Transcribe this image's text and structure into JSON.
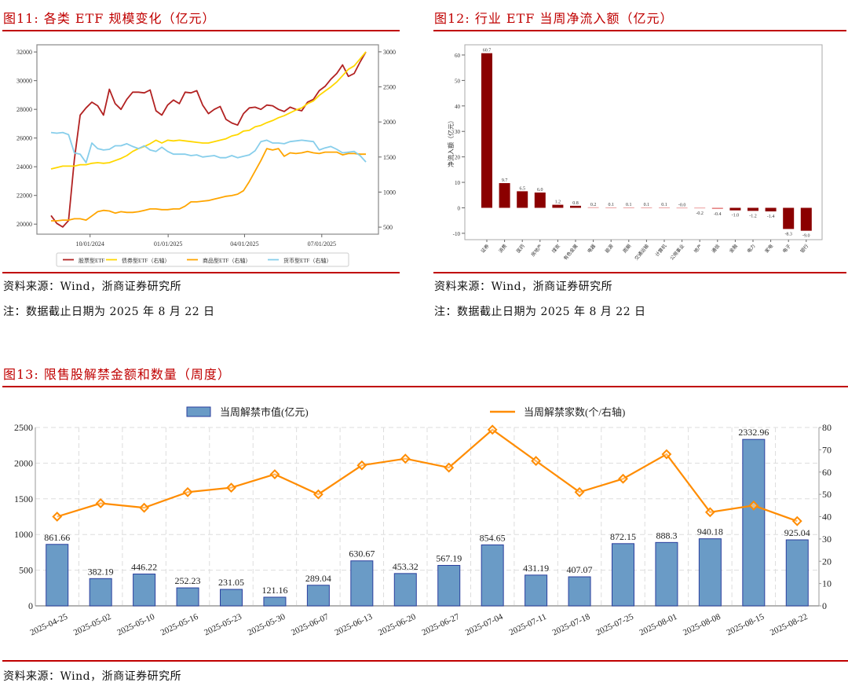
{
  "figures": {
    "fig11": {
      "title": "图11:  各类 ETF 规模变化（亿元）",
      "source": "资料来源：Wind，浙商证券研究所",
      "note": "注：数据截止日期为 2025 年 8 月 22 日"
    },
    "fig12": {
      "title": "图12:  行业 ETF 当周净流入额（亿元）",
      "source": "资料来源：Wind，浙商证券研究所",
      "note": "注：数据截止日期为 2025 年 8 月 22 日"
    },
    "fig13": {
      "title": "图13:  限售股解禁金额和数量（周度）",
      "source": "资料来源：Wind，浙商证券研究所"
    }
  },
  "colors": {
    "title_red": "#c00000",
    "equity_etf": "#b22222",
    "bond_etf": "#ffd700",
    "commodity_etf": "#ffa500",
    "money_etf": "#87ceeb",
    "bar_darkred": "#8b0000",
    "bar_blue": "#6a9bc6",
    "bar_blue_edge": "#2b3f9e",
    "line_orange": "#ff8c00"
  },
  "chart_data": [
    {
      "id": "fig11",
      "type": "line",
      "title": "各类 ETF 规模变化（亿元）",
      "xlabel": "",
      "ylabel": "",
      "x_ticks": [
        "10/01/2024",
        "01/01/2025",
        "04/01/2025",
        "07/01/2025"
      ],
      "x_range": [
        "2024-08-16",
        "2025-08-22"
      ],
      "ylim_left": [
        19300,
        32500
      ],
      "y_ticks_left": [
        20000,
        22000,
        24000,
        26000,
        28000,
        30000,
        32000
      ],
      "ylim_right": [
        400,
        3100
      ],
      "y_ticks_right": [
        500,
        1000,
        1500,
        2000,
        2500,
        3000
      ],
      "grid": false,
      "legend": "bottom",
      "series": [
        {
          "name": "股票型ETF",
          "axis": "left",
          "color": "#b22222",
          "values": [
            20600,
            20050,
            19800,
            20250,
            24500,
            27600,
            28100,
            28500,
            28250,
            27600,
            29400,
            28400,
            28000,
            28700,
            29200,
            29200,
            29150,
            29350,
            27900,
            27600,
            28300,
            28650,
            28400,
            29200,
            29150,
            29300,
            28300,
            27700,
            28000,
            28200,
            27300,
            27050,
            26900,
            27700,
            28100,
            28150,
            28000,
            28300,
            28250,
            28000,
            27850,
            28150,
            28000,
            27900,
            28500,
            28700,
            29300,
            29600,
            30100,
            30500,
            31100,
            30300,
            30500,
            31300,
            32000
          ]
        },
        {
          "name": "债券型ETF（右轴）",
          "axis": "right",
          "color": "#ffd700",
          "values": [
            1330,
            1350,
            1370,
            1370,
            1370,
            1390,
            1390,
            1410,
            1420,
            1410,
            1420,
            1450,
            1480,
            1520,
            1580,
            1620,
            1650,
            1690,
            1740,
            1700,
            1740,
            1730,
            1740,
            1730,
            1720,
            1710,
            1700,
            1700,
            1720,
            1740,
            1760,
            1800,
            1820,
            1870,
            1880,
            1930,
            1950,
            1990,
            2020,
            2060,
            2090,
            2130,
            2170,
            2200,
            2260,
            2300,
            2380,
            2440,
            2500,
            2570,
            2660,
            2750,
            2800,
            2900,
            3000
          ]
        },
        {
          "name": "商品型ETF（右轴）",
          "axis": "right",
          "color": "#ffa500",
          "values": [
            590,
            590,
            600,
            600,
            620,
            620,
            600,
            660,
            720,
            740,
            730,
            700,
            720,
            710,
            710,
            720,
            740,
            760,
            760,
            750,
            750,
            760,
            760,
            800,
            860,
            860,
            870,
            880,
            900,
            920,
            940,
            950,
            970,
            1020,
            1150,
            1300,
            1450,
            1620,
            1600,
            1620,
            1510,
            1560,
            1550,
            1560,
            1580,
            1560,
            1550,
            1570,
            1570,
            1570,
            1530,
            1550,
            1550,
            1540,
            1540
          ]
        },
        {
          "name": "货币型ETF（右轴）",
          "axis": "right",
          "color": "#87ceeb",
          "values": [
            1850,
            1840,
            1850,
            1820,
            1560,
            1540,
            1420,
            1700,
            1620,
            1600,
            1610,
            1660,
            1660,
            1690,
            1650,
            1620,
            1660,
            1600,
            1580,
            1640,
            1580,
            1540,
            1540,
            1540,
            1520,
            1530,
            1500,
            1510,
            1520,
            1490,
            1490,
            1520,
            1490,
            1510,
            1530,
            1590,
            1720,
            1740,
            1700,
            1700,
            1690,
            1720,
            1730,
            1740,
            1730,
            1720,
            1600,
            1630,
            1650,
            1610,
            1560,
            1570,
            1580,
            1520,
            1430
          ]
        }
      ]
    },
    {
      "id": "fig12",
      "type": "bar",
      "title": "行业 ETF 当周净流入额（亿元）",
      "xlabel": "",
      "ylabel": "净流入额（亿元）",
      "categories": [
        "证券",
        "消费",
        "医药",
        "房地产",
        "煤炭",
        "有色金属",
        "电器",
        "能源",
        "周期",
        "交通运输",
        "计算机",
        "公用事业",
        "地产",
        "通信",
        "金融",
        "电力",
        "家电",
        "电子",
        "银行"
      ],
      "values": [
        60.7,
        9.7,
        6.5,
        6.0,
        1.2,
        0.8,
        0.2,
        0.1,
        0.1,
        0.1,
        0.1,
        -0.0,
        -0.2,
        -0.4,
        -1.0,
        -1.2,
        -1.4,
        -8.3,
        -9.0
      ],
      "labels": [
        "60.7",
        "9.7",
        "6.5",
        "6.0",
        "1.2",
        "0.8",
        "0.2",
        "0.1",
        "0.1",
        "0.1",
        "0.1",
        "-0.0",
        "-0.2",
        "-0.4",
        "-1.0",
        "-1.2",
        "-1.4",
        "-8.3",
        "-9.0"
      ],
      "ylim": [
        -12.5,
        64
      ],
      "y_ticks": [
        -10,
        0,
        10,
        20,
        30,
        40,
        50,
        60
      ],
      "grid": false
    },
    {
      "id": "fig13",
      "type": "bar",
      "title": "限售股解禁金额和数量（周度）",
      "categories": [
        "2025-04-25",
        "2025-05-02",
        "2025-05-10",
        "2025-05-16",
        "2025-05-23",
        "2025-05-30",
        "2025-06-07",
        "2025-06-13",
        "2025-06-20",
        "2025-06-27",
        "2025-07-04",
        "2025-07-11",
        "2025-07-18",
        "2025-07-25",
        "2025-08-01",
        "2025-08-08",
        "2025-08-15",
        "2025-08-22"
      ],
      "series": [
        {
          "name": "当周解禁市值(亿元)",
          "kind": "bar",
          "axis": "left",
          "values": [
            861.66,
            382.19,
            446.22,
            252.23,
            231.05,
            121.16,
            289.04,
            630.67,
            453.32,
            567.19,
            854.65,
            431.19,
            407.07,
            872.15,
            888.3,
            940.18,
            2332.96,
            925.04
          ],
          "labels": [
            "861.66",
            "382.19",
            "446.22",
            "252.23",
            "231.05",
            "121.16",
            "289.04",
            "630.67",
            "453.32",
            "567.19",
            "854.65",
            "431.19",
            "407.07",
            "872.15",
            "888.3",
            "940.18",
            "2332.96",
            "925.04"
          ]
        },
        {
          "name": "当周解禁家数(个/右轴)",
          "kind": "line",
          "axis": "right",
          "marker": "diamond",
          "values": [
            40,
            46,
            44,
            51,
            53,
            59,
            50,
            63,
            66,
            62,
            79,
            65,
            51,
            57,
            68,
            42,
            45,
            38
          ]
        }
      ],
      "ylim_left": [
        0,
        2500
      ],
      "y_ticks_left": [
        0,
        500,
        1000,
        1500,
        2000,
        2500
      ],
      "ylim_right": [
        0,
        80
      ],
      "y_ticks_right": [
        0,
        10,
        20,
        30,
        40,
        50,
        60,
        70,
        80
      ],
      "grid": true,
      "legend": "top"
    }
  ]
}
